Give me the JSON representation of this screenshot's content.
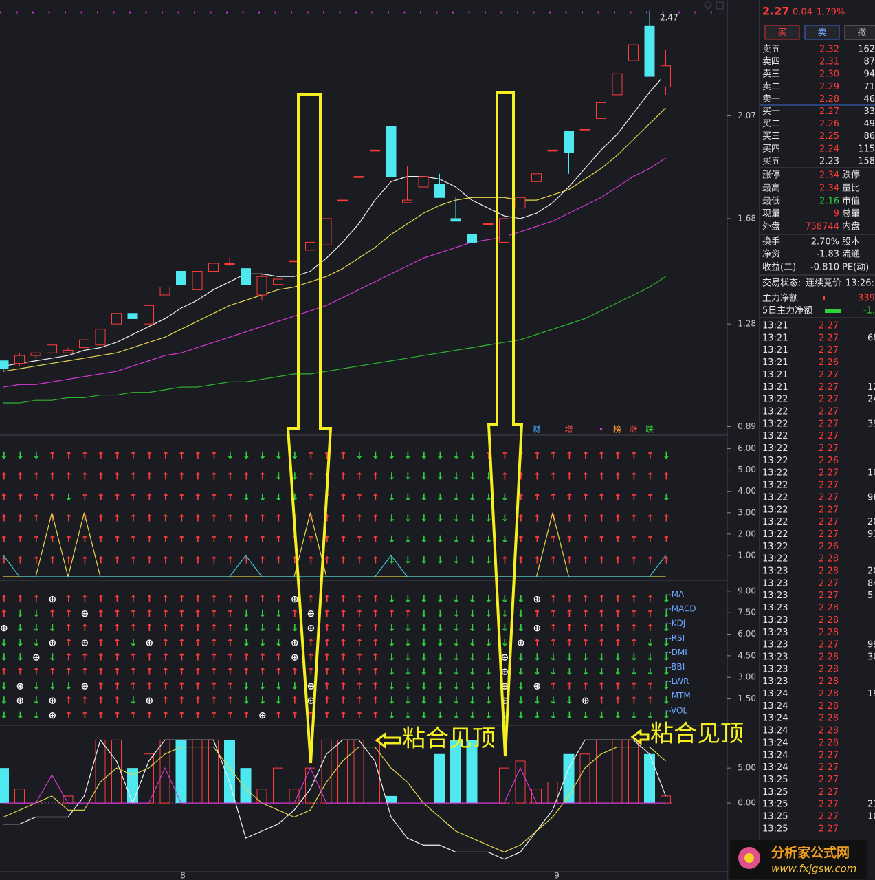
{
  "price_chart": {
    "ylim": [
      0.86,
      2.51
    ],
    "yticks": [
      2.07,
      1.68,
      1.28,
      0.89
    ],
    "max_label": "2.47",
    "candles": [
      [
        1.14,
        1.14,
        1.1,
        1.11
      ],
      [
        1.13,
        1.17,
        1.12,
        1.16
      ],
      [
        1.16,
        1.17,
        1.15,
        1.17
      ],
      [
        1.17,
        1.22,
        1.17,
        1.2
      ],
      [
        1.17,
        1.19,
        1.17,
        1.18
      ],
      [
        1.19,
        1.22,
        1.19,
        1.22
      ],
      [
        1.2,
        1.26,
        1.2,
        1.26
      ],
      [
        1.28,
        1.32,
        1.28,
        1.32
      ],
      [
        1.32,
        1.32,
        1.3,
        1.3
      ],
      [
        1.28,
        1.35,
        1.28,
        1.35
      ],
      [
        1.39,
        1.42,
        1.39,
        1.42
      ],
      [
        1.48,
        1.48,
        1.37,
        1.43
      ],
      [
        1.41,
        1.48,
        1.41,
        1.48
      ],
      [
        1.48,
        1.51,
        1.48,
        1.51
      ],
      [
        1.51,
        1.53,
        1.5,
        1.51
      ],
      [
        1.49,
        1.49,
        1.43,
        1.43
      ],
      [
        1.39,
        1.47,
        1.37,
        1.46
      ],
      [
        1.43,
        1.45,
        1.43,
        1.45
      ],
      [
        1.52,
        1.52,
        1.52,
        1.52
      ],
      [
        1.56,
        1.59,
        1.56,
        1.59
      ],
      [
        1.58,
        1.68,
        1.58,
        1.68
      ],
      [
        1.75,
        1.75,
        1.75,
        1.75
      ],
      [
        1.84,
        1.84,
        1.84,
        1.84
      ],
      [
        1.94,
        1.94,
        1.94,
        1.94
      ],
      [
        2.03,
        2.03,
        1.84,
        1.84
      ],
      [
        1.74,
        1.88,
        1.74,
        1.75
      ],
      [
        1.8,
        1.84,
        1.8,
        1.84
      ],
      [
        1.81,
        1.85,
        1.76,
        1.76
      ],
      [
        1.68,
        1.76,
        1.67,
        1.67
      ],
      [
        1.62,
        1.69,
        1.59,
        1.59
      ],
      [
        1.66,
        1.66,
        1.66,
        1.66
      ],
      [
        1.59,
        1.68,
        1.59,
        1.68
      ],
      [
        1.72,
        1.76,
        1.72,
        1.76
      ],
      [
        1.82,
        1.85,
        1.82,
        1.85
      ],
      [
        1.94,
        1.94,
        1.94,
        1.94
      ],
      [
        2.01,
        2.01,
        1.85,
        1.93
      ],
      [
        2.02,
        2.02,
        2.02,
        2.02
      ],
      [
        2.06,
        2.12,
        2.06,
        2.12
      ],
      [
        2.15,
        2.23,
        2.15,
        2.23
      ],
      [
        2.28,
        2.34,
        2.28,
        2.34
      ],
      [
        2.41,
        2.47,
        2.22,
        2.22
      ],
      [
        2.18,
        2.32,
        2.15,
        2.26
      ]
    ],
    "ma": [
      {
        "color": "#f0f0f0",
        "values": [
          1.12,
          1.13,
          1.14,
          1.15,
          1.16,
          1.18,
          1.19,
          1.21,
          1.24,
          1.27,
          1.3,
          1.34,
          1.37,
          1.41,
          1.44,
          1.47,
          1.47,
          1.46,
          1.46,
          1.48,
          1.53,
          1.59,
          1.66,
          1.75,
          1.82,
          1.84,
          1.84,
          1.83,
          1.8,
          1.75,
          1.72,
          1.69,
          1.68,
          1.7,
          1.74,
          1.8,
          1.87,
          1.94,
          2.0,
          2.08,
          2.16,
          2.23
        ]
      },
      {
        "color": "#e6d84a",
        "values": [
          1.1,
          1.11,
          1.12,
          1.13,
          1.14,
          1.15,
          1.16,
          1.17,
          1.19,
          1.21,
          1.23,
          1.26,
          1.29,
          1.32,
          1.35,
          1.37,
          1.39,
          1.41,
          1.42,
          1.44,
          1.46,
          1.49,
          1.53,
          1.57,
          1.62,
          1.66,
          1.7,
          1.73,
          1.75,
          1.76,
          1.76,
          1.76,
          1.75,
          1.75,
          1.77,
          1.79,
          1.83,
          1.87,
          1.92,
          1.98,
          2.04,
          2.1
        ]
      },
      {
        "color": "#d637d6",
        "values": [
          1.04,
          1.05,
          1.05,
          1.06,
          1.07,
          1.08,
          1.09,
          1.1,
          1.12,
          1.14,
          1.16,
          1.17,
          1.19,
          1.21,
          1.23,
          1.25,
          1.27,
          1.29,
          1.31,
          1.33,
          1.35,
          1.38,
          1.41,
          1.44,
          1.47,
          1.5,
          1.53,
          1.55,
          1.57,
          1.59,
          1.6,
          1.61,
          1.63,
          1.65,
          1.67,
          1.7,
          1.73,
          1.76,
          1.8,
          1.84,
          1.87,
          1.91
        ]
      },
      {
        "color": "#2fb52f",
        "values": [
          0.98,
          0.98,
          0.99,
          0.99,
          1.0,
          1.0,
          1.01,
          1.01,
          1.02,
          1.02,
          1.03,
          1.04,
          1.04,
          1.05,
          1.06,
          1.06,
          1.07,
          1.08,
          1.09,
          1.09,
          1.1,
          1.11,
          1.12,
          1.13,
          1.14,
          1.15,
          1.16,
          1.17,
          1.18,
          1.19,
          1.2,
          1.21,
          1.22,
          1.24,
          1.26,
          1.28,
          1.3,
          1.33,
          1.36,
          1.39,
          1.42,
          1.46
        ]
      }
    ],
    "markers": [
      {
        "text": "财",
        "color": "#4aa8ff"
      },
      {
        "text": "增",
        "color": "#ff4a4a"
      },
      {
        "text": "•",
        "color": "#d637d6"
      },
      {
        "text": "榜",
        "color": "#ff9a3a"
      },
      {
        "text": "涨",
        "color": "#ff4a4a"
      },
      {
        "text": "跌",
        "color": "#2fd13a"
      }
    ]
  },
  "signal_chart": {
    "ylim": [
      -0.13,
      6.6
    ],
    "yticks": [
      {
        "value": 6,
        "label": "6.00"
      },
      {
        "value": 5,
        "label": "5.00"
      },
      {
        "value": 4,
        "label": "4.00"
      },
      {
        "value": 3,
        "label": "3.00"
      },
      {
        "value": 2,
        "label": "2.00"
      },
      {
        "value": 1,
        "label": "1.00"
      }
    ],
    "rows": [
      "↓↓↓↑↑↑↑↑↑↑↑↑↑↑↓↓↓↓↓↑↑↑↓↓↓↓↓↓↓↓↑↑↑↑↑↑↑↑↑↑↑↓",
      "↑↑↑↑↑↑↑↑↑↑↑↑↑↑↑↑↑↓↓↑↑↑↑↑↓↓↓↓↓↓↓↑↑↑↑↑↑↑↑↑↑↑",
      "↑↑↑↑↓↑↑↑↑↑↑↑↑↑↑↓↓↓↓↑↑↑↑↑↓↓↓↓↓↓↓↓↑↑↑↑↑↑↑↑↑↓",
      "↑↑↑↑↑↑↑↑↑↑↑↑↑↑↑↑↑↑↑↑↑↑↑↑↓↓↓↓↓↓↓↓↑↑↑↑↑↑↑↑↑↑",
      "↑↑↑↑↑↑↑↑↑↑↑↑↑↑↑↑↑↑↑↑↑↑↑↑↓↓↓↓↓↓↓↓↑↑↑↑↑↑↑↑↑↑",
      "↑↑↑↑↑↑↑↑↑↑↑↑↑↑↑↑↑↑↑↑↑↑↑↑↓↓↓↓↓↓↓↑↑↑↑↑↑↑↑↑↑↑"
    ],
    "lines": [
      {
        "color": "#e6d84a",
        "values": [
          0,
          0,
          0,
          3,
          0,
          3,
          0,
          0,
          0,
          0,
          0,
          0,
          0,
          0,
          0,
          0,
          0,
          0,
          0,
          3,
          0,
          0,
          0,
          0,
          0,
          0,
          0,
          0,
          0,
          0,
          0,
          0,
          0,
          0,
          3,
          0,
          0,
          0,
          0,
          0,
          0,
          0
        ]
      },
      {
        "color": "#3ec8d8",
        "values": [
          1,
          0,
          0,
          0,
          0,
          0,
          0,
          0,
          0,
          0,
          0,
          0,
          0,
          0,
          0,
          1,
          0,
          0,
          0,
          0,
          0,
          0,
          0,
          0,
          1,
          0,
          0,
          0,
          0,
          0,
          0,
          0,
          0,
          0,
          0,
          0,
          0,
          0,
          0,
          0,
          0,
          1
        ]
      }
    ]
  },
  "multi_chart": {
    "ylim": [
      -0.29,
      9.71
    ],
    "yticks": [
      {
        "value": 9,
        "label": "9.00"
      },
      {
        "value": 7.5,
        "label": "7.50"
      },
      {
        "value": 6,
        "label": "6.00"
      },
      {
        "value": 4.5,
        "label": "4.50"
      },
      {
        "value": 3,
        "label": "3.00"
      },
      {
        "value": 1.5,
        "label": "1.50"
      }
    ],
    "labels": [
      "--MA",
      "--MACD",
      "--KDJ",
      "--RSI",
      "--DMI",
      "--BBI",
      "--LWR",
      "--MTM",
      "--VOL"
    ],
    "rows": [
      "↑↑↑⊕↑↑↑↑↑↑↑↑↑↑↑↑↑↑⊕↑↑↑↑↑↓↓↓↓↓↓↓↓↓⊕↑↑↑↑↑↑↑↓",
      "↑↓↓↑↑⊕↑↑↑↑↑↑↑↑↑↓↓↓↑⊕↑↑↑↑↑↑↓↓↓↓↓↓↓↑↑↑↑↑↑↑↑↓",
      "⊕↓↓↓↑↑↑↑↑↑↑↑↑↑↑↓↓↓↓⊕↑↑↑↑↓↓↓↓↓↓↓↓↓⊕↑↑↑↑↑↑↑↓",
      "↓↓↓⊕↑⊕↑↑↓⊕↑↑↑↑↑↓↓↓⊕↑↑↑↑↑↓↓↓↓↓↓↓↓⊕↑↑↑↑↑↑↑↓↓",
      "↓↓⊕↓↑↑↑↑↑↑↑↑↑↑↑↑↑↑⊕↑↑↑↑↑↓↓↓↓↓↓↓⊕↓↓↓↓↓↓↓↓↓↓",
      "↑↑↑↑↑↑↑↑↑↑↑↑↑↑↑↑↑↑↑↑↑↑↑↑↓↓↓↓↓↓↓⊕↓↓↓↓↓↓↓↓↓↓",
      "↓⊕↓↓↓⊕↑↑↑↑↑↑↑↑↑↓↓↓↓⊕↑↑↑↑↓↓↓↓↓↓↓⊕↓⊕↑↑↑↑↑↑↑↓",
      "↓⊕↓⊕↑↑↑↑↓⊕↑↑↑↑↑↓↓↓↑⊕↑↑↑↑↓↓↓↓↓↓↓⊕↓↓↓↓⊕↑↑↑↑↓",
      "↓↓↓⊕↑↑↑↑↑↑↑↑↑↑↑↑⊕↑↑↑↑↑↑↑↓↓↓↓↓↓↓↓↓↓↓↓↓↓↓↓↓↓"
    ]
  },
  "osc_chart": {
    "ylim": [
      -9.8,
      11.0
    ],
    "yticks": [
      {
        "value": 5,
        "label": "5.00"
      },
      {
        "value": 0,
        "label": "0.00"
      }
    ],
    "cyan_bars": [
      5,
      null,
      null,
      null,
      null,
      null,
      null,
      null,
      5,
      null,
      null,
      9,
      null,
      null,
      9,
      5,
      null,
      null,
      null,
      null,
      null,
      null,
      null,
      null,
      1,
      null,
      null,
      7,
      9,
      9,
      null,
      null,
      null,
      null,
      null,
      7,
      null,
      null,
      null,
      null,
      7,
      null
    ],
    "red_bars": [
      null,
      2,
      null,
      null,
      1,
      null,
      9,
      9,
      null,
      7,
      9,
      null,
      9,
      9,
      null,
      null,
      2,
      5,
      2,
      5,
      9,
      9,
      9,
      9,
      null,
      null,
      null,
      null,
      null,
      null,
      null,
      5,
      6,
      2,
      3,
      null,
      7,
      9,
      9,
      9,
      null,
      1
    ],
    "lines": [
      {
        "color": "#f0f0f0",
        "values": [
          -3,
          -3,
          -2,
          -2,
          -2,
          1,
          9,
          6,
          0,
          6,
          9,
          9,
          9,
          9,
          3,
          -5,
          -4,
          -3,
          -1,
          2,
          7,
          9,
          9,
          6,
          -2,
          -5,
          -6,
          -6,
          -7,
          -7,
          -7,
          -8,
          -7,
          -4,
          -1,
          5,
          9,
          9,
          9,
          9,
          7,
          1
        ]
      },
      {
        "color": "#e6d84a",
        "values": [
          -2,
          -1,
          0,
          1,
          -1,
          -1,
          3,
          5,
          4,
          5,
          7,
          8,
          8,
          8,
          5,
          2,
          0,
          -1,
          -2,
          -1,
          3,
          6,
          8,
          8,
          5,
          3,
          0,
          -2,
          -4,
          -5,
          -6,
          -7,
          -6,
          -4,
          -2,
          1,
          5,
          7,
          8,
          8,
          8,
          6
        ]
      },
      {
        "color": "#d637d6",
        "values": [
          0,
          0,
          0,
          4,
          0,
          0,
          0,
          0,
          0,
          0,
          5,
          0,
          0,
          0,
          0,
          0,
          0,
          0,
          0,
          5,
          0,
          0,
          0,
          0,
          0,
          0,
          0,
          0,
          0,
          0,
          0,
          0,
          5,
          0,
          0,
          0,
          0,
          0,
          0,
          0,
          0,
          0
        ]
      }
    ]
  },
  "x_labels": [
    "8",
    "9"
  ],
  "annotations": [
    "粘合见顶",
    "粘合见顶"
  ],
  "quote": {
    "price": "2.27",
    "change": "0.04",
    "pct": "1.79%",
    "buttons": [
      "买",
      "卖",
      "撤"
    ],
    "book": [
      [
        "卖五",
        "2.32",
        "162"
      ],
      [
        "卖四",
        "2.31",
        "87"
      ],
      [
        "卖三",
        "2.30",
        "94"
      ],
      [
        "卖二",
        "2.29",
        "71"
      ],
      [
        "卖一",
        "2.28",
        "46"
      ],
      [
        "买一",
        "2.27",
        "33"
      ],
      [
        "买二",
        "2.26",
        "49"
      ],
      [
        "买三",
        "2.25",
        "86"
      ],
      [
        "买四",
        "2.24",
        "115"
      ],
      [
        "买五",
        "2.23",
        "158"
      ]
    ],
    "stats": [
      [
        "涨停",
        "2.34",
        "跌停"
      ],
      [
        "最高",
        "2.34",
        "量比"
      ],
      [
        "最低",
        "2.16",
        "市值"
      ],
      [
        "现量",
        "9",
        "总量"
      ],
      [
        "外盘",
        "758744",
        "内盘"
      ],
      [
        "换手",
        "2.70%",
        "股本"
      ],
      [
        "净资",
        "-1.83",
        "流通"
      ],
      [
        "收益(二)",
        "-0.810",
        "PE(动)"
      ]
    ],
    "status": [
      "交易状态:",
      "连续竞价",
      "13:26:1"
    ],
    "flow": [
      [
        "主力净额",
        "339"
      ],
      [
        "5日主力净额",
        "-1."
      ]
    ]
  },
  "trades": [
    [
      "13:21",
      "2.27"
    ],
    [
      "13:21",
      "2.27",
      "68"
    ],
    [
      "13:21",
      "2.27"
    ],
    [
      "13:21",
      "2.26"
    ],
    [
      "13:21",
      "2.27"
    ],
    [
      "13:21",
      "2.27",
      "12"
    ],
    [
      "13:22",
      "2.27",
      "24"
    ],
    [
      "13:22",
      "2.27"
    ],
    [
      "13:22",
      "2.27",
      "39"
    ],
    [
      "13:22",
      "2.27"
    ],
    [
      "13:22",
      "2.27"
    ],
    [
      "13:22",
      "2.26"
    ],
    [
      "13:22",
      "2.27",
      "10"
    ],
    [
      "13:22",
      "2.27"
    ],
    [
      "13:22",
      "2.27",
      "96"
    ],
    [
      "13:22",
      "2.27"
    ],
    [
      "13:22",
      "2.27",
      "20"
    ],
    [
      "13:22",
      "2.27",
      "93"
    ],
    [
      "13:22",
      "2.26"
    ],
    [
      "13:22",
      "2.28"
    ],
    [
      "13:23",
      "2.28",
      "20"
    ],
    [
      "13:23",
      "2.27",
      "84"
    ],
    [
      "13:23",
      "2.27",
      "5"
    ],
    [
      "13:23",
      "2.28"
    ],
    [
      "13:23",
      "2.28"
    ],
    [
      "13:23",
      "2.28"
    ],
    [
      "13:23",
      "2.27",
      "99"
    ],
    [
      "13:23",
      "2.28",
      "30"
    ],
    [
      "13:23",
      "2.28"
    ],
    [
      "13:23",
      "2.28"
    ],
    [
      "13:24",
      "2.28",
      "19"
    ],
    [
      "13:24",
      "2.28"
    ],
    [
      "13:24",
      "2.28"
    ],
    [
      "13:24",
      "2.28"
    ],
    [
      "13:24",
      "2.28"
    ],
    [
      "13:24",
      "2.27"
    ],
    [
      "13:24",
      "2.27"
    ],
    [
      "13:25",
      "2.27"
    ],
    [
      "13:25",
      "2.27"
    ],
    [
      "13:25",
      "2.27",
      "21"
    ],
    [
      "13:25",
      "2.27",
      "10"
    ],
    [
      "13:25",
      "2.27"
    ]
  ],
  "watermark": {
    "title": "分析家公式网",
    "url": "www.fxjgsw.com"
  }
}
